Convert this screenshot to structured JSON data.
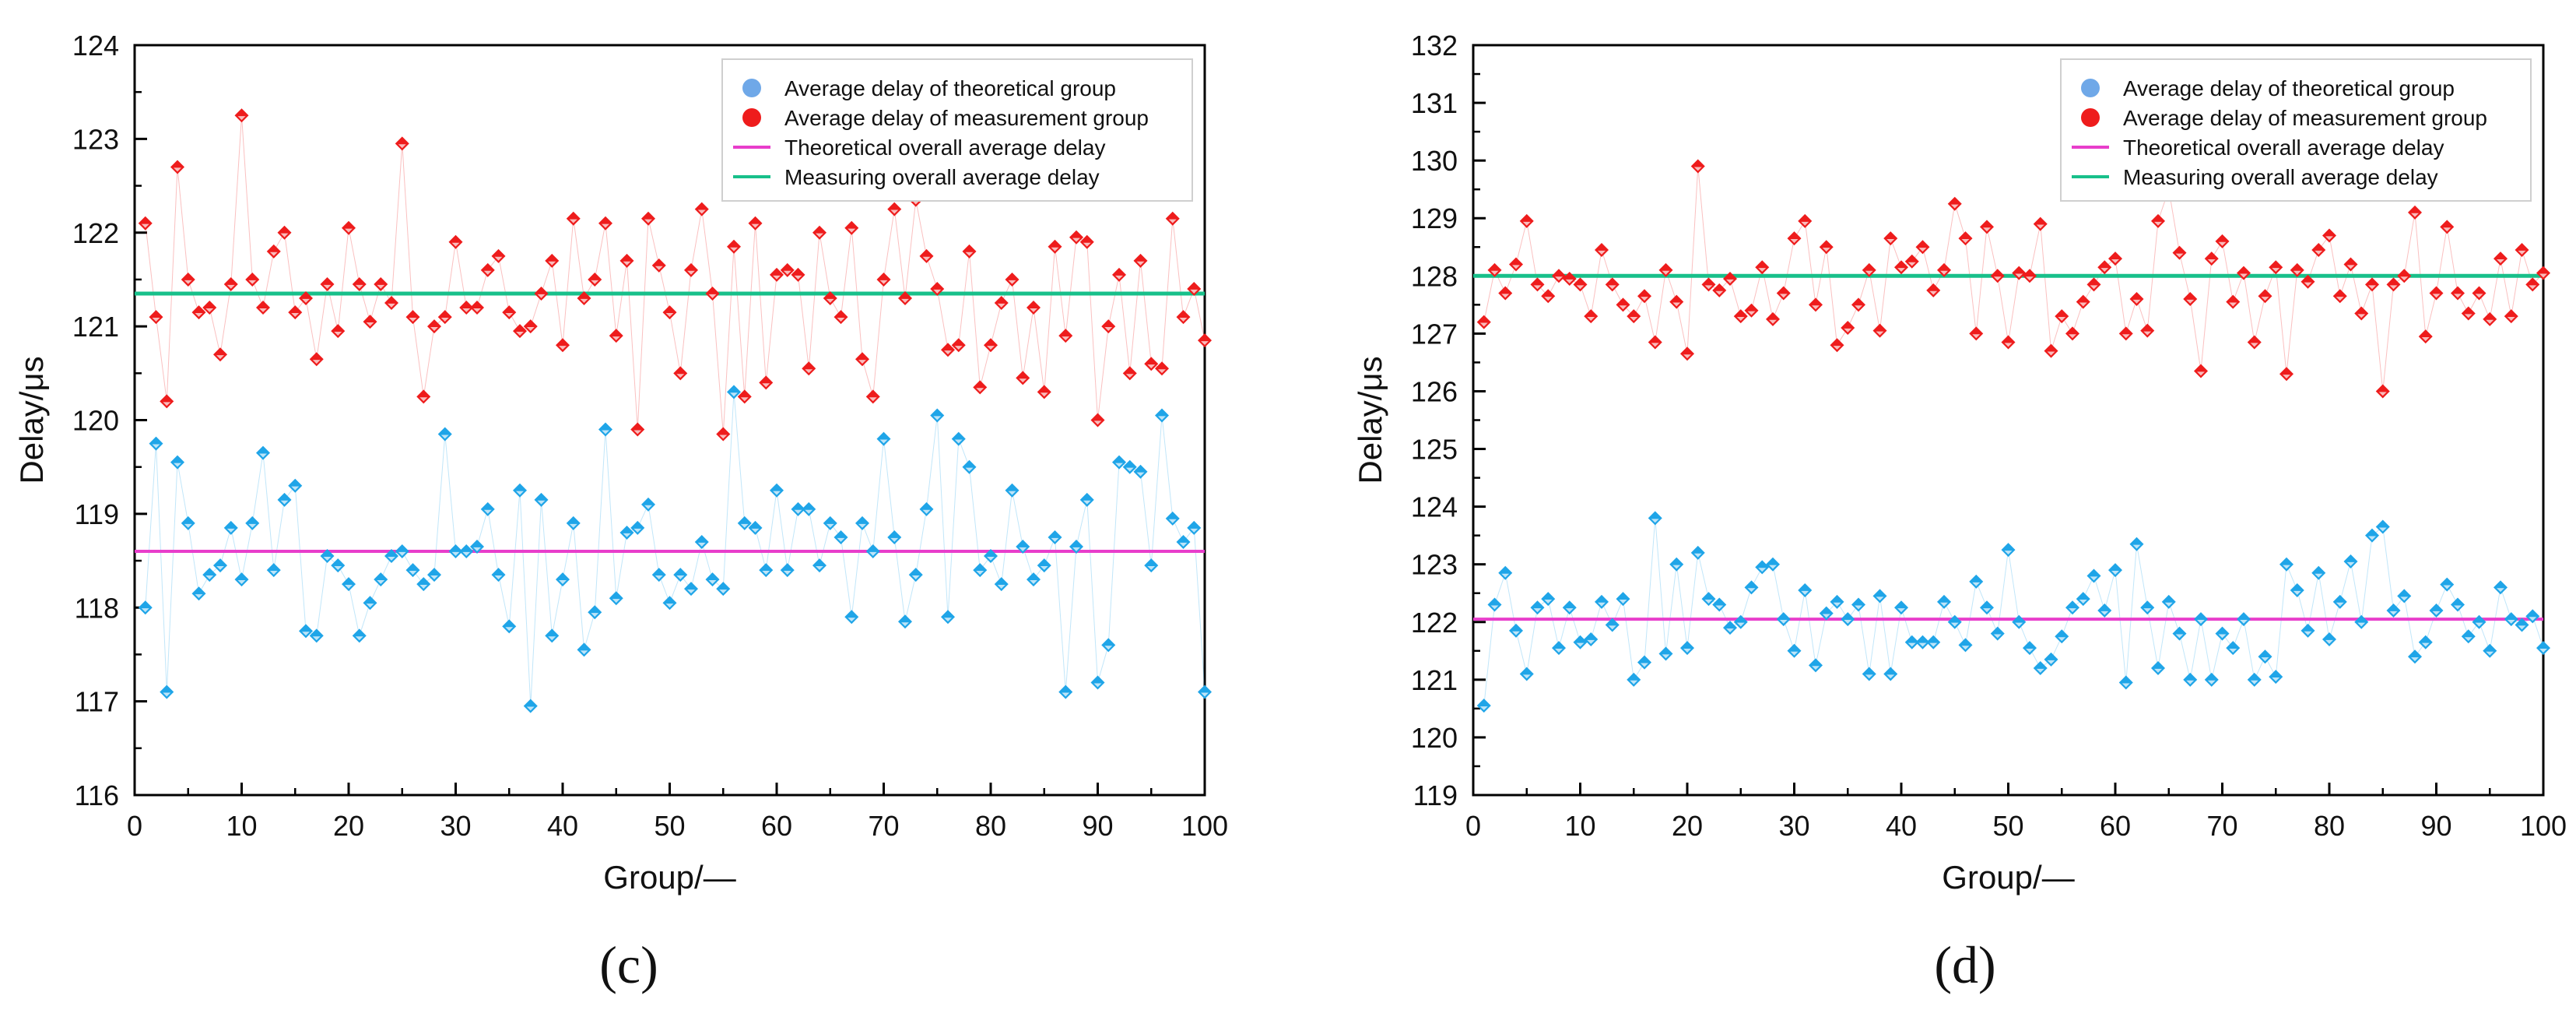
{
  "legend": {
    "theoretical_points": "Average delay of theoretical group",
    "measurement_points": "Average delay of measurement group",
    "theoretical_line": "Theoretical overall average delay",
    "measuring_line": "Measuring overall average delay"
  },
  "colors": {
    "theoretical": "#1fa5e8",
    "theoretical_legend": "#6fa8e8",
    "measurement": "#ee1c1c",
    "theoretical_line": "#e83ecb",
    "measuring_line": "#18c08a"
  },
  "chart_data": [
    {
      "type": "scatter",
      "panel_label": "(c)",
      "xlabel": "Group/—",
      "ylabel": "Delay/μs",
      "xlim": [
        0,
        100
      ],
      "ylim": [
        116,
        124
      ],
      "xticks": [
        0,
        10,
        20,
        30,
        40,
        50,
        60,
        70,
        80,
        90,
        100
      ],
      "yticks": [
        116,
        117,
        118,
        119,
        120,
        121,
        122,
        123,
        124
      ],
      "legend_position": "top-right",
      "theoretical_average": 118.6,
      "measuring_average": 121.35,
      "series": [
        {
          "name": "Average delay of theoretical group",
          "x_start": 1,
          "values": [
            118.0,
            119.75,
            117.1,
            119.55,
            118.9,
            118.15,
            118.35,
            118.45,
            118.85,
            118.3,
            118.9,
            119.65,
            118.4,
            119.15,
            119.3,
            117.75,
            117.7,
            118.55,
            118.45,
            118.25,
            117.7,
            118.05,
            118.3,
            118.55,
            118.6,
            118.4,
            118.25,
            118.35,
            119.85,
            118.6,
            118.6,
            118.65,
            119.05,
            118.35,
            117.8,
            119.25,
            116.95,
            119.15,
            117.7,
            118.3,
            118.9,
            117.55,
            117.95,
            119.9,
            118.1,
            118.8,
            118.85,
            119.1,
            118.35,
            118.05,
            118.35,
            118.2,
            118.7,
            118.3,
            118.2,
            120.3,
            118.9,
            118.85,
            118.4,
            119.25,
            118.4,
            119.05,
            119.05,
            118.45,
            118.9,
            118.75,
            117.9,
            118.9,
            118.6,
            119.8,
            118.75,
            117.85,
            118.35,
            119.05,
            120.05,
            117.9,
            119.8,
            119.5,
            118.4,
            118.55,
            118.25,
            119.25,
            118.65,
            118.3,
            118.45,
            118.75,
            117.1,
            118.65,
            119.15,
            117.2,
            117.6,
            119.55,
            119.5,
            119.45,
            118.45,
            120.05,
            118.95,
            118.7,
            118.85,
            117.1
          ]
        },
        {
          "name": "Average delay of measurement group",
          "x_start": 1,
          "values": [
            122.1,
            121.1,
            120.2,
            122.7,
            121.5,
            121.15,
            121.2,
            120.7,
            121.45,
            123.25,
            121.5,
            121.2,
            121.8,
            122.0,
            121.15,
            121.3,
            120.65,
            121.45,
            120.95,
            122.05,
            121.45,
            121.05,
            121.45,
            121.25,
            122.95,
            121.1,
            120.25,
            121.0,
            121.1,
            121.9,
            121.2,
            121.2,
            121.6,
            121.75,
            121.15,
            120.95,
            121.0,
            121.35,
            121.7,
            120.8,
            122.15,
            121.3,
            121.5,
            122.1,
            120.9,
            121.7,
            119.9,
            122.15,
            121.65,
            121.15,
            120.5,
            121.6,
            122.25,
            121.35,
            119.85,
            121.85,
            120.25,
            122.1,
            120.4,
            121.55,
            121.6,
            121.55,
            120.55,
            122.0,
            121.3,
            121.1,
            122.05,
            120.65,
            120.25,
            121.5,
            122.25,
            121.3,
            122.35,
            121.75,
            121.4,
            120.75,
            120.8,
            121.8,
            120.35,
            120.8,
            121.25,
            121.5,
            120.45,
            121.2,
            120.3,
            121.85,
            120.9,
            121.95,
            121.9,
            120.0,
            121.0,
            121.55,
            120.5,
            121.7,
            120.6,
            120.55,
            122.15,
            121.1,
            121.4,
            120.85
          ]
        }
      ]
    },
    {
      "type": "scatter",
      "panel_label": "(d)",
      "xlabel": "Group/—",
      "ylabel": "Delay/μs",
      "xlim": [
        0,
        100
      ],
      "ylim": [
        119,
        132
      ],
      "xticks": [
        0,
        10,
        20,
        30,
        40,
        50,
        60,
        70,
        80,
        90,
        100
      ],
      "yticks": [
        119,
        120,
        121,
        122,
        123,
        124,
        125,
        126,
        127,
        128,
        129,
        130,
        131,
        132
      ],
      "legend_position": "top-right",
      "theoretical_average": 122.05,
      "measuring_average": 128.0,
      "series": [
        {
          "name": "Average delay of theoretical group",
          "x_start": 1,
          "values": [
            120.55,
            122.3,
            122.85,
            121.85,
            121.1,
            122.25,
            122.4,
            121.55,
            122.25,
            121.65,
            121.7,
            122.35,
            121.95,
            122.4,
            121.0,
            121.3,
            123.8,
            121.45,
            123.0,
            121.55,
            123.2,
            122.4,
            122.3,
            121.9,
            122.0,
            122.6,
            122.95,
            123.0,
            122.05,
            121.5,
            122.55,
            121.25,
            122.15,
            122.35,
            122.05,
            122.3,
            121.1,
            122.45,
            121.1,
            122.25,
            121.65,
            121.65,
            121.65,
            122.35,
            122.0,
            121.6,
            122.7,
            122.25,
            121.8,
            123.25,
            122.0,
            121.55,
            121.2,
            121.35,
            121.75,
            122.25,
            122.4,
            122.8,
            122.2,
            122.9,
            120.95,
            123.35,
            122.25,
            121.2,
            122.35,
            121.8,
            121.0,
            122.05,
            121.0,
            121.8,
            121.55,
            122.05,
            121.0,
            121.4,
            121.05,
            123.0,
            122.55,
            121.85,
            122.85,
            121.7,
            122.35,
            123.05,
            122.0,
            123.5,
            123.65,
            122.2,
            122.45,
            121.4,
            121.65,
            122.2,
            122.65,
            122.3,
            121.75,
            122.0,
            121.5,
            122.6,
            122.05,
            121.95,
            122.1,
            121.55
          ]
        },
        {
          "name": "Average delay of measurement group",
          "x_start": 1,
          "values": [
            127.2,
            128.1,
            127.7,
            128.2,
            128.95,
            127.85,
            127.65,
            128.0,
            127.95,
            127.85,
            127.3,
            128.45,
            127.85,
            127.5,
            127.3,
            127.65,
            126.85,
            128.1,
            127.55,
            126.65,
            129.9,
            127.85,
            127.75,
            127.95,
            127.3,
            127.4,
            128.15,
            127.25,
            127.7,
            128.65,
            128.95,
            127.5,
            128.5,
            126.8,
            127.1,
            127.5,
            128.1,
            127.05,
            128.65,
            128.15,
            128.25,
            128.5,
            127.75,
            128.1,
            129.25,
            128.65,
            127.0,
            128.85,
            128.0,
            126.85,
            128.05,
            128.0,
            128.9,
            126.7,
            127.3,
            127.0,
            127.55,
            127.85,
            128.15,
            128.3,
            127.0,
            127.6,
            127.05,
            128.95,
            129.5,
            128.4,
            127.6,
            126.35,
            128.3,
            128.6,
            127.55,
            128.05,
            126.85,
            127.65,
            128.15,
            126.3,
            128.1,
            127.9,
            128.45,
            128.7,
            127.65,
            128.2,
            127.35,
            127.85,
            126.0,
            127.85,
            128.0,
            129.1,
            126.95,
            127.7,
            128.85,
            127.7,
            127.35,
            127.7,
            127.25,
            128.3,
            127.3,
            128.45,
            127.85,
            128.05
          ]
        }
      ]
    }
  ]
}
